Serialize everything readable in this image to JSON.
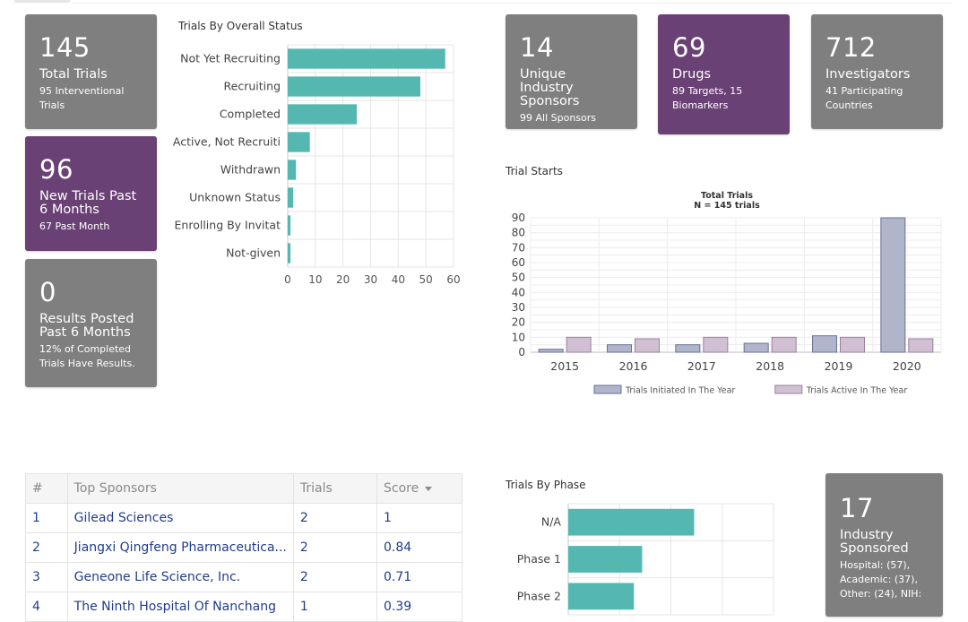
{
  "cards": {
    "total_trials": {
      "number": "145",
      "title": "Total Trials",
      "sub": "95 Interventional Trials"
    },
    "new_trials": {
      "number": "96",
      "title": "New Trials Past 6 Months",
      "sub": "67 Past Month"
    },
    "results_posted": {
      "number": "0",
      "title": "Results Posted Past 6 Months",
      "sub": "12% of Completed Trials Have Results."
    },
    "industry_sponsors": {
      "number": "14",
      "title": "Unique Industry Sponsors",
      "sub": "99 All Sponsors"
    },
    "drugs": {
      "number": "69",
      "title": "Drugs",
      "sub": "89 Targets, 15 Biomarkers"
    },
    "investigators": {
      "number": "712",
      "title": "Investigators",
      "sub": "41 Participating Countries"
    },
    "industry_sponsored": {
      "number": "17",
      "title": "Industry Sponsored",
      "sub": "Hospital: (57), Academic: (37), Other: (24), NIH:"
    }
  },
  "colors": {
    "gray_card": "#7f7f7f",
    "purple_card": "#6a4175",
    "teal_bar": "#54b8b1",
    "initiated": "#b0b5cc",
    "active": "#d1bfd3"
  },
  "chart_data": [
    {
      "type": "bar",
      "orientation": "horizontal",
      "title": "Trials By Overall Status",
      "categories": [
        "Not Yet Recruiting",
        "Recruiting",
        "Completed",
        "Active, Not Recruiti",
        "Withdrawn",
        "Unknown Status",
        "Enrolling By Invitat",
        "Not-given"
      ],
      "values": [
        57,
        48,
        25,
        8,
        3,
        2,
        1,
        1
      ],
      "xlim": [
        0,
        60
      ],
      "xticks": [
        "0",
        "10",
        "20",
        "30",
        "40",
        "50",
        "60"
      ],
      "grid": true
    },
    {
      "type": "bar",
      "title": "Trial Starts",
      "chart_title": "Total Trials",
      "chart_subtitle": "N = 145 trials",
      "categories": [
        "2015",
        "2016",
        "2017",
        "2018",
        "2019",
        "2020"
      ],
      "series": [
        {
          "name": "Trials Initiated In The Year",
          "values": [
            2,
            5,
            5,
            6,
            11,
            90
          ]
        },
        {
          "name": "Trials Active In The Year",
          "values": [
            10,
            9,
            10,
            10,
            10,
            9
          ]
        }
      ],
      "ylim": [
        0,
        90
      ],
      "yticks": [
        "0",
        "10",
        "20",
        "30",
        "40",
        "50",
        "60",
        "70",
        "80",
        "90"
      ],
      "legend": "bottom",
      "grid": true
    },
    {
      "type": "bar",
      "orientation": "horizontal",
      "title": "Trials By Phase",
      "categories": [
        "N/A",
        "Phase 1",
        "Phase 2"
      ],
      "values": [
        46,
        27,
        24
      ],
      "xlim": [
        0,
        75
      ],
      "grid": true
    }
  ],
  "sponsors_table": {
    "headers": {
      "rank": "#",
      "name": "Top Sponsors",
      "trials": "Trials",
      "score": "Score"
    },
    "rows": [
      {
        "rank": "1",
        "name": "Gilead Sciences",
        "trials": "2",
        "score": "1"
      },
      {
        "rank": "2",
        "name": "Jiangxi Qingfeng Pharmaceutica...",
        "trials": "2",
        "score": "0.84"
      },
      {
        "rank": "3",
        "name": "Geneone Life Science, Inc.",
        "trials": "2",
        "score": "0.71"
      },
      {
        "rank": "4",
        "name": "The Ninth Hospital Of Nanchang",
        "trials": "1",
        "score": "0.39"
      }
    ]
  }
}
